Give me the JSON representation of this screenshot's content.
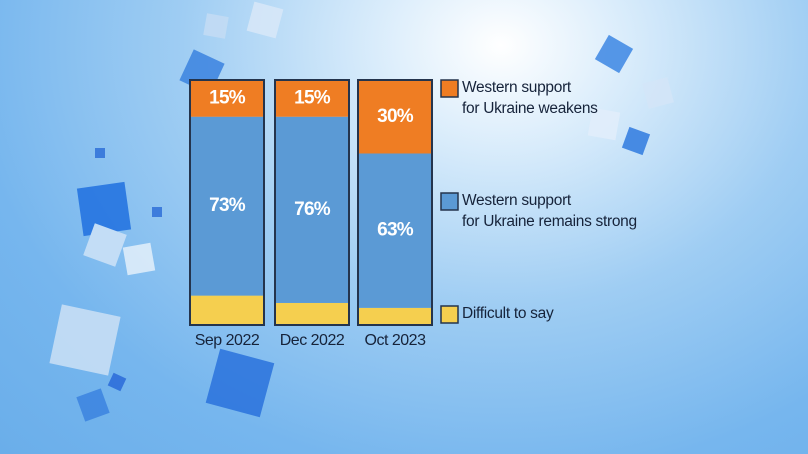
{
  "chart_data": {
    "type": "stacked-bar",
    "categories": [
      "Sep 2022",
      "Dec 2022",
      "Oct 2023"
    ],
    "series": [
      {
        "name": "Difficult to say",
        "color": "#f5cf4f",
        "values": [
          12,
          9,
          7
        ]
      },
      {
        "name": "Western support\nfor Ukraine remains strong",
        "color": "#5b9ad5",
        "values": [
          73,
          76,
          63
        ],
        "value_labels": [
          "73%",
          "76%",
          "63%"
        ]
      },
      {
        "name": "Western support\nfor Ukraine weakens",
        "color": "#ef7d23",
        "values": [
          15,
          15,
          30
        ],
        "value_labels": [
          "15%",
          "15%",
          "30%"
        ]
      }
    ]
  }
}
